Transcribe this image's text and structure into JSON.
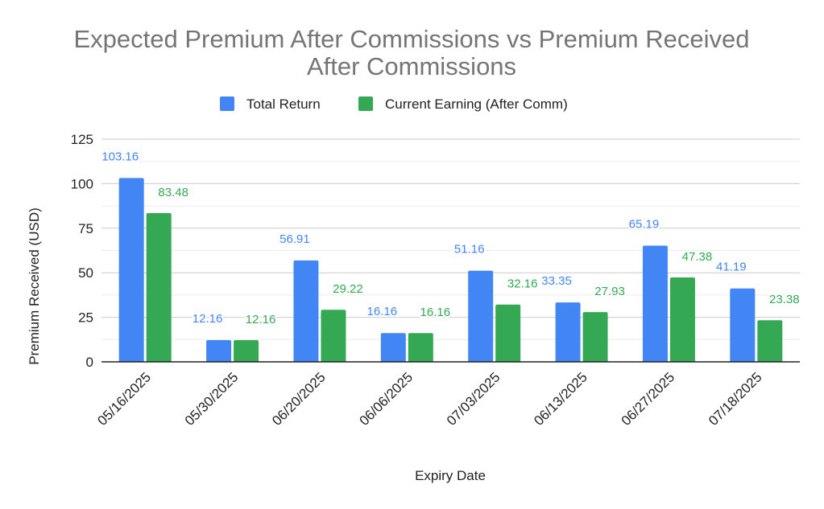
{
  "chart_data": {
    "type": "bar",
    "title_lines": [
      "Expected Premium After Commissions vs Premium Received",
      "After Commissions"
    ],
    "xlabel": "Expiry Date",
    "ylabel": "Premium Received (USD)",
    "ylim": [
      0,
      125
    ],
    "yticks": [
      0,
      25,
      50,
      75,
      100,
      125
    ],
    "grid": true,
    "legend_position": "top",
    "categories": [
      "05/16/2025",
      "05/30/2025",
      "06/20/2025",
      "06/06/2025",
      "07/03/2025",
      "06/13/2025",
      "06/27/2025",
      "07/18/2025"
    ],
    "series": [
      {
        "name": "Total Return",
        "color": "#4285f4",
        "values": [
          103.16,
          12.16,
          56.91,
          16.16,
          51.16,
          33.35,
          65.19,
          41.19
        ],
        "labels": [
          "103.16",
          "12.16",
          "56.91",
          "16.16",
          "51.16",
          "33.35",
          "65.19",
          "41.19"
        ]
      },
      {
        "name": "Current Earning (After Comm)",
        "color": "#34a853",
        "values": [
          83.48,
          12.16,
          29.22,
          16.16,
          32.16,
          27.93,
          47.38,
          23.38
        ],
        "labels": [
          "83.48",
          "12.16",
          "29.22",
          "16.16",
          "32.16",
          "27.93",
          "47.38",
          "23.38"
        ]
      }
    ]
  }
}
